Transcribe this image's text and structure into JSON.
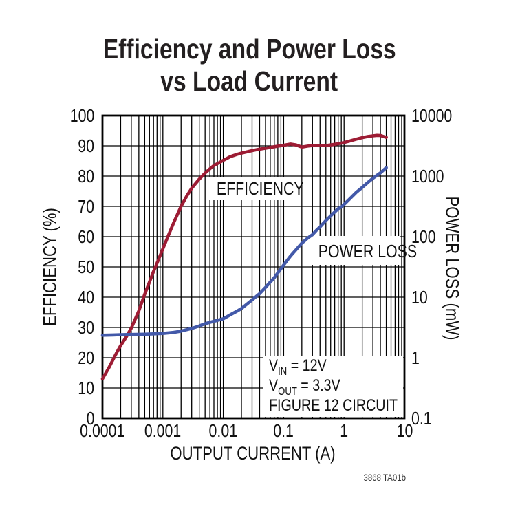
{
  "chart": {
    "title_line1": "Efficiency and Power Loss",
    "title_line2": "vs Load Current",
    "credit": "3868 TA01b"
  },
  "labels": {
    "efficiency_curve": "EFFICIENCY",
    "power_loss_curve": "POWER LOSS",
    "annotation": {
      "line1_main": "V",
      "line1_sub": "IN",
      "line1_rest": " = 12V",
      "line2_main": "V",
      "line2_sub": "OUT",
      "line2_rest": " = 3.3V",
      "line3": "FIGURE 12 CIRCUIT"
    }
  },
  "chart_data": {
    "type": "line",
    "title": "Efficiency and Power Loss vs Load Current",
    "grid": {
      "on": true,
      "color": "#000000"
    },
    "x_axis": {
      "label": "OUTPUT CURRENT (A)",
      "scale": "log",
      "min": 0.0001,
      "max": 10,
      "tick_labels": [
        "0.0001",
        "0.001",
        "0.01",
        "0.1",
        "1",
        "10"
      ]
    },
    "y_axis_left": {
      "label": "EFFICIENCY (%)",
      "scale": "linear",
      "min": 0,
      "max": 100,
      "tick_step": 10,
      "tick_labels": [
        "100",
        "90",
        "80",
        "70",
        "60",
        "50",
        "40",
        "30",
        "20",
        "10",
        "0"
      ]
    },
    "y_axis_right": {
      "label": "POWER LOSS (mW)",
      "scale": "log",
      "min": 0.1,
      "max": 10000,
      "tick_labels": [
        "10000",
        "1000",
        "100",
        "10",
        "1",
        "0.1"
      ]
    },
    "series": [
      {
        "name": "EFFICIENCY",
        "axis": "left",
        "units": "%",
        "color": "#9D1C34",
        "points": [
          [
            0.0001,
            13
          ],
          [
            0.00013,
            17
          ],
          [
            0.00017,
            21.5
          ],
          [
            0.0002,
            24
          ],
          [
            0.00025,
            27
          ],
          [
            0.0003,
            29.8
          ],
          [
            0.0004,
            35.5
          ],
          [
            0.0005,
            41
          ],
          [
            0.0006,
            45
          ],
          [
            0.0007,
            48.5
          ],
          [
            0.00085,
            52.5
          ],
          [
            0.001,
            56
          ],
          [
            0.0013,
            61.5
          ],
          [
            0.0015,
            64.5
          ],
          [
            0.002,
            70
          ],
          [
            0.0025,
            73.5
          ],
          [
            0.003,
            76
          ],
          [
            0.004,
            79
          ],
          [
            0.005,
            81
          ],
          [
            0.006,
            82.4
          ],
          [
            0.007,
            83.5
          ],
          [
            0.0085,
            84.4
          ],
          [
            0.01,
            85.2
          ],
          [
            0.013,
            86.4
          ],
          [
            0.017,
            87.2
          ],
          [
            0.02,
            87.6
          ],
          [
            0.03,
            88.4
          ],
          [
            0.04,
            88.9
          ],
          [
            0.05,
            89.2
          ],
          [
            0.07,
            89.7
          ],
          [
            0.1,
            90.2
          ],
          [
            0.13,
            90.6
          ],
          [
            0.16,
            90.3
          ],
          [
            0.2,
            89.6
          ],
          [
            0.25,
            89.9
          ],
          [
            0.3,
            90.1
          ],
          [
            0.4,
            90.1
          ],
          [
            0.5,
            90.1
          ],
          [
            0.6,
            90.3
          ],
          [
            0.7,
            90.5
          ],
          [
            0.85,
            90.8
          ],
          [
            1,
            91.1
          ],
          [
            1.3,
            91.7
          ],
          [
            1.6,
            92.2
          ],
          [
            2,
            92.7
          ],
          [
            2.5,
            93.1
          ],
          [
            3,
            93.3
          ],
          [
            3.5,
            93.45
          ],
          [
            4,
            93.4
          ],
          [
            4.5,
            93.1
          ],
          [
            5,
            92.8
          ]
        ]
      },
      {
        "name": "POWER LOSS",
        "axis": "right",
        "units": "mW",
        "color": "#4359A9",
        "points": [
          [
            0.0001,
            2.35
          ],
          [
            0.00015,
            2.38
          ],
          [
            0.0002,
            2.4
          ],
          [
            0.0003,
            2.42
          ],
          [
            0.0005,
            2.45
          ],
          [
            0.0007,
            2.48
          ],
          [
            0.001,
            2.52
          ],
          [
            0.0015,
            2.62
          ],
          [
            0.002,
            2.75
          ],
          [
            0.003,
            3.05
          ],
          [
            0.004,
            3.35
          ],
          [
            0.005,
            3.65
          ],
          [
            0.007,
            4.0
          ],
          [
            0.01,
            4.4
          ],
          [
            0.013,
            5.1
          ],
          [
            0.017,
            5.9
          ],
          [
            0.02,
            6.5
          ],
          [
            0.03,
            9.0
          ],
          [
            0.04,
            11.5
          ],
          [
            0.05,
            14.5
          ],
          [
            0.07,
            21
          ],
          [
            0.1,
            34
          ],
          [
            0.13,
            48
          ],
          [
            0.17,
            65
          ],
          [
            0.2,
            78
          ],
          [
            0.25,
            95
          ],
          [
            0.3,
            108
          ],
          [
            0.35,
            128
          ],
          [
            0.4,
            145
          ],
          [
            0.5,
            185
          ],
          [
            0.7,
            255
          ],
          [
            0.8,
            290
          ],
          [
            0.9,
            308
          ],
          [
            1,
            340
          ],
          [
            1.3,
            440
          ],
          [
            1.6,
            540
          ],
          [
            2,
            650
          ],
          [
            2.5,
            790
          ],
          [
            3,
            920
          ],
          [
            4,
            1130
          ],
          [
            5,
            1380
          ]
        ]
      }
    ],
    "annotations": [
      "VIN = 12V",
      "VOUT = 3.3V",
      "FIGURE 12 CIRCUIT"
    ],
    "legend_position": "inline-labels"
  }
}
